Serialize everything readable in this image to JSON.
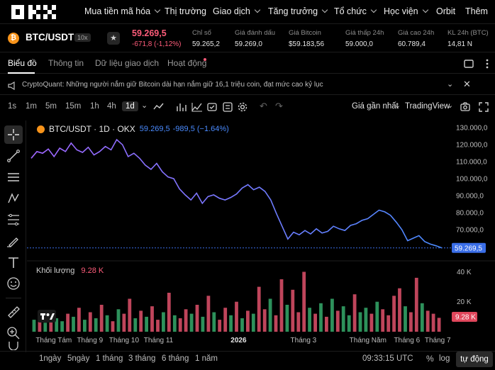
{
  "nav": {
    "items": [
      "Mua tiền mã hóa",
      "Thị trường",
      "Giao dịch",
      "Tăng trưởng",
      "Tổ chức",
      "Học viện",
      "Orbit",
      "Thêm"
    ]
  },
  "pair": {
    "coin_glyph": "₿",
    "name": "BTC/USDT",
    "leverage": "10x",
    "star": "★",
    "price": "59.269,5",
    "change": "-671,8 (-1,12%)",
    "stats": [
      {
        "label": "Chỉ số",
        "value": "59.265,2"
      },
      {
        "label": "Giá đánh dấu",
        "value": "59.269,0"
      },
      {
        "label": "Giá Bitcoin",
        "value": "$59.183,56"
      },
      {
        "label": "Giá thấp 24h",
        "value": "59.000,0"
      },
      {
        "label": "Giá cao 24h",
        "value": "60.789,4"
      },
      {
        "label": "KL 24h (BTC)",
        "value": "14,81 N"
      }
    ]
  },
  "tabs": [
    "Biểu đồ",
    "Thông tin",
    "Dữ liệu giao dịch",
    "Hoạt động"
  ],
  "notice": {
    "text": "CryptoQuant: Những người nắm giữ Bitcoin dài hạn nắm giữ 16,1 triệu coin, đạt mức cao kỷ lục"
  },
  "toolbar": {
    "intervals": [
      "1s",
      "1m",
      "5m",
      "15m",
      "1h",
      "4h",
      "1d"
    ],
    "selected": "1d",
    "price_source": "Giá gần nhất",
    "chart_engine": "TradingView"
  },
  "chart_header": {
    "symbol": "BTC/USDT · 1D · OKX",
    "last": "59.269,5",
    "change": "-989,5 (−1.64%)"
  },
  "volume_header": {
    "label": "Khối lượng",
    "value": "9.28 K"
  },
  "colors": {
    "up": "#3cc27a",
    "down": "#ff5c7a",
    "line_start": "#a066ff",
    "line_end": "#4a8bff",
    "badge": "#3a6ee8",
    "vol_badge": "#e0475c"
  },
  "chart_data": {
    "type": "line",
    "series": [
      {
        "name": "BTC/USDT · 1D · OKX",
        "values": [
          112000,
          116000,
          115000,
          117500,
          113000,
          118000,
          116000,
          121000,
          117000,
          115500,
          118500,
          114000,
          116000,
          119000,
          117000,
          123000,
          120000,
          113000,
          115000,
          112000,
          108000,
          105500,
          109000,
          104000,
          101000,
          100000,
          94000,
          90500,
          87500,
          91500,
          85500,
          89500,
          90500,
          88500,
          87500,
          89000,
          91000,
          94500,
          96500,
          93500,
          95000,
          92500,
          87500,
          79500,
          72000,
          64500,
          68500,
          67000,
          69500,
          67500,
          70500,
          68000,
          69000,
          72000,
          70500,
          69500,
          72500,
          73500,
          75500,
          76500,
          79000,
          81500,
          80500,
          78500,
          74500,
          70000,
          63500,
          65000,
          66500,
          63000,
          61500,
          60500,
          59269.5
        ]
      }
    ],
    "y_ticks": [
      130000,
      120000,
      110000,
      100000,
      90000,
      80000,
      70000
    ],
    "y_tick_labels": [
      "130.000,0",
      "120.000,0",
      "110.000,0",
      "100.000,0",
      "90.000,0",
      "80.000,0",
      "70.000,0"
    ],
    "last_label": "59.269,5",
    "ylim": [
      55000,
      133000
    ],
    "x_labels": [
      "Tháng Tám",
      "Tháng 9",
      "Tháng 10",
      "Tháng 11",
      "2026",
      "Tháng 3",
      "Tháng Năm",
      "Tháng 6",
      "Tháng 7"
    ],
    "volume": {
      "axis_labels": [
        "40 K",
        "20 K"
      ],
      "badge": "9.28 K",
      "ylim": [
        0,
        44000
      ],
      "values": [
        8000,
        11000,
        6000,
        14000,
        9000,
        7000,
        12000,
        10000,
        16000,
        8000,
        13000,
        9000,
        18000,
        11000,
        7000,
        15000,
        12000,
        22000,
        9000,
        14000,
        10000,
        17000,
        8000,
        13000,
        26000,
        11000,
        9000,
        15000,
        12000,
        18000,
        10000,
        24000,
        13000,
        8000,
        16000,
        11000,
        20000,
        9000,
        14000,
        12000,
        30000,
        15000,
        22000,
        11000,
        35000,
        18000,
        28000,
        13000,
        40000,
        16000,
        12000,
        19000,
        10000,
        22000,
        14000,
        17000,
        11000,
        25000,
        13000,
        16000,
        12000,
        20000,
        15000,
        11000,
        24000,
        29000,
        17000,
        13000,
        36000,
        19000,
        14000,
        12000,
        9280
      ],
      "directions": [
        "u",
        "d",
        "u",
        "d",
        "u",
        "u",
        "d",
        "u",
        "d",
        "u",
        "d",
        "u",
        "d",
        "u",
        "d",
        "u",
        "d",
        "d",
        "u",
        "d",
        "u",
        "d",
        "d",
        "u",
        "d",
        "u",
        "d",
        "d",
        "u",
        "d",
        "u",
        "d",
        "u",
        "d",
        "d",
        "u",
        "d",
        "u",
        "d",
        "u",
        "d",
        "d",
        "u",
        "d",
        "d",
        "u",
        "d",
        "d",
        "d",
        "u",
        "d",
        "u",
        "d",
        "u",
        "d",
        "u",
        "u",
        "d",
        "u",
        "u",
        "d",
        "u",
        "d",
        "d",
        "d",
        "d",
        "u",
        "d",
        "d",
        "u",
        "d",
        "d",
        "d"
      ]
    }
  },
  "bottom": {
    "ranges": [
      "1ngày",
      "5ngày",
      "1 tháng",
      "3 tháng",
      "6 tháng",
      "1 năm"
    ],
    "clock": "09:33:15 UTC",
    "pct": "%",
    "log": "log",
    "auto": "tự động"
  }
}
